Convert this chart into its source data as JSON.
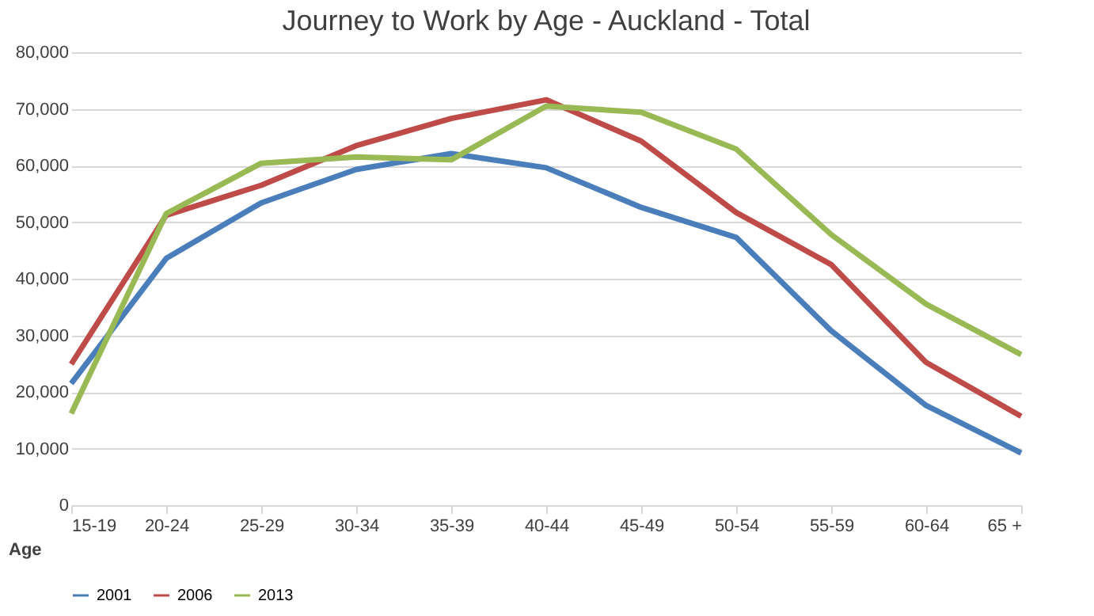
{
  "chart_data": {
    "type": "line",
    "title": "Journey to Work by Age - Auckland - Total",
    "xlabel": "Age",
    "categories": [
      "15-19",
      "20-24",
      "25-29",
      "30-34",
      "35-39",
      "40-44",
      "45-49",
      "50-54",
      "55-59",
      "60-64",
      "65 +"
    ],
    "series": [
      {
        "name": "2001",
        "color": "#4a7ebb",
        "values": [
          21500,
          43600,
          53400,
          59300,
          62100,
          59600,
          52600,
          47300,
          30800,
          17600,
          9200
        ]
      },
      {
        "name": "2006",
        "color": "#be4b48",
        "values": [
          24900,
          51200,
          56500,
          63500,
          68300,
          71600,
          64300,
          51700,
          42500,
          25200,
          15700
        ]
      },
      {
        "name": "2013",
        "color": "#98b954",
        "values": [
          16200,
          51500,
          60400,
          61500,
          61000,
          70500,
          69400,
          62900,
          47800,
          35500,
          26600
        ]
      }
    ],
    "ylim": [
      0,
      80000
    ],
    "yticks": [
      0,
      {
        "value": 10000,
        "label": "10,000"
      },
      {
        "value": 20000,
        "label": "20,000"
      },
      {
        "value": 30000,
        "label": "30,000"
      },
      {
        "value": 40000,
        "label": "40,000"
      },
      {
        "value": 50000,
        "label": "50,000"
      },
      {
        "value": 60000,
        "label": "60,000"
      },
      {
        "value": 70000,
        "label": "70,000"
      },
      {
        "value": 80000,
        "label": "80,000"
      }
    ],
    "grid": "y",
    "legend": "bottom",
    "marker": "none",
    "line_style": "solid"
  }
}
